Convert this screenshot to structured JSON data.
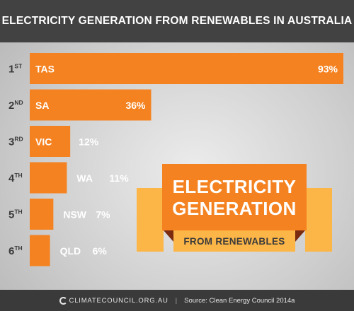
{
  "header": {
    "title": "ELECTRICITY GENERATION FROM RENEWABLES IN AUSTRALIA"
  },
  "badge": {
    "line1": "ELECTRICITY",
    "line2": "GENERATION",
    "line3": "FROM RENEWABLES"
  },
  "footer": {
    "logo": "CLIMATECOUNCIL.ORG.AU",
    "separator": "|",
    "source": "Source: Clean Energy Council 2014a"
  },
  "colors": {
    "bar": "#f58220",
    "header_bg": "#424242",
    "badge_main": "#f58220",
    "badge_light": "#fcb648",
    "badge_fold": "#7a2b10",
    "rank_text": "#3a3a3a"
  },
  "chart_data": {
    "type": "bar",
    "orientation": "horizontal",
    "title": "ELECTRICITY GENERATION FROM RENEWABLES IN AUSTRALIA",
    "unit": "%",
    "xlim": [
      0,
      93
    ],
    "grid": false,
    "rows": [
      {
        "rank": "1",
        "suffix": "ST",
        "category": "TAS",
        "value": 93,
        "label": "93%"
      },
      {
        "rank": "2",
        "suffix": "ND",
        "category": "SA",
        "value": 36,
        "label": "36%"
      },
      {
        "rank": "3",
        "suffix": "RD",
        "category": "VIC",
        "value": 12,
        "label": "12%"
      },
      {
        "rank": "4",
        "suffix": "TH",
        "category": "WA",
        "value": 11,
        "label": "11%"
      },
      {
        "rank": "5",
        "suffix": "TH",
        "category": "NSW",
        "value": 7,
        "label": "7%"
      },
      {
        "rank": "6",
        "suffix": "TH",
        "category": "QLD",
        "value": 6,
        "label": "6%"
      }
    ]
  }
}
